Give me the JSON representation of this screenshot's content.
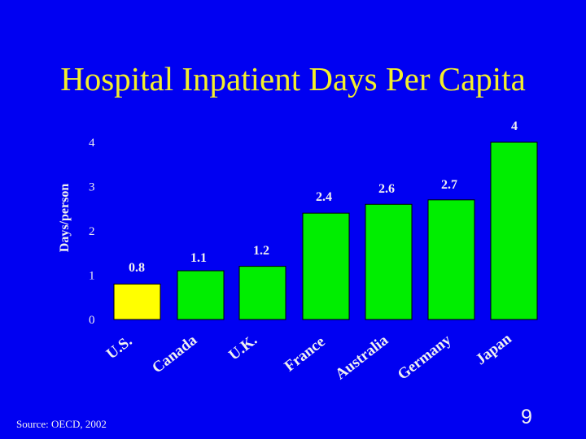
{
  "slide": {
    "title": "Hospital Inpatient Days Per Capita",
    "source": "Source: OECD, 2002",
    "page_number": "9"
  },
  "colors": {
    "background": "#0000f2",
    "title": "#f4ef2a",
    "text": "#f0f0f0",
    "us_bar": "#ffff00",
    "other_bars": "#00ee00"
  },
  "chart_data": {
    "type": "bar",
    "title": "Hospital Inpatient Days Per Capita",
    "xlabel": "",
    "ylabel": "Days/person",
    "categories": [
      "U.S.",
      "Canada",
      "U.K.",
      "France",
      "Australia",
      "Germany",
      "Japan"
    ],
    "values": [
      0.8,
      1.1,
      1.2,
      2.4,
      2.6,
      2.7,
      4
    ],
    "data_labels": [
      "0.8",
      "1.1",
      "1.2",
      "2.4",
      "2.6",
      "2.7",
      "4"
    ],
    "y_ticks": [
      0,
      1,
      2,
      3,
      4
    ],
    "ylim": [
      0,
      4
    ],
    "grid": false,
    "highlight_category": "U.S."
  }
}
